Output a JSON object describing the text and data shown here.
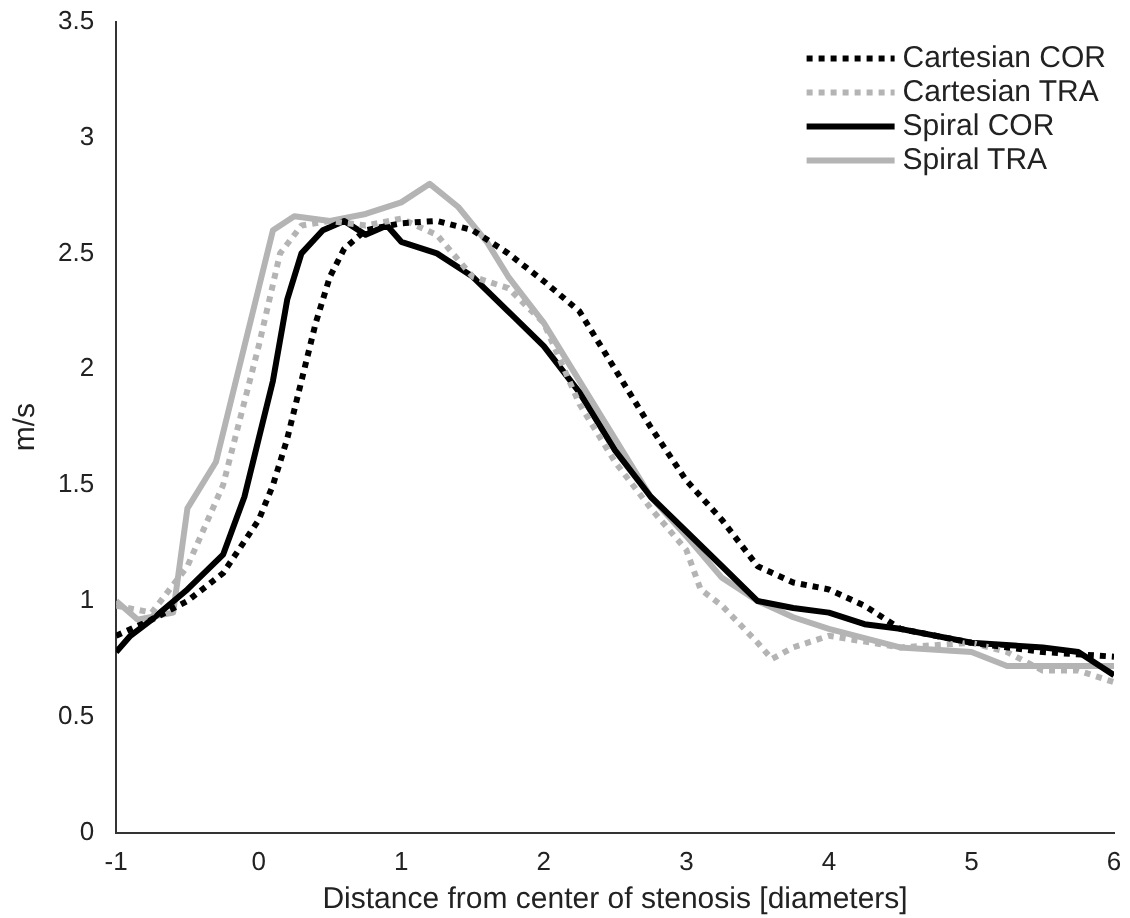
{
  "chart_data": {
    "type": "line",
    "xlabel": "Distance from center of stenosis [diameters]",
    "ylabel": "m/s",
    "xlim": [
      -1,
      6
    ],
    "xticks": [
      -1,
      0,
      1,
      2,
      3,
      4,
      5,
      6
    ],
    "ylim": [
      0,
      3.5
    ],
    "yticks": [
      0,
      0.5,
      1,
      1.5,
      2,
      2.5,
      3,
      3.5
    ],
    "grid": false,
    "legend": "top right",
    "marker": "none",
    "series": [
      {
        "name": "Cartesian COR",
        "color": "#000000",
        "line_style": "dotted",
        "x": [
          -1,
          -0.75,
          -0.5,
          -0.25,
          0,
          0.1,
          0.2,
          0.3,
          0.4,
          0.5,
          0.6,
          0.75,
          1,
          1.25,
          1.5,
          1.75,
          2,
          2.25,
          2.5,
          2.75,
          3,
          3.25,
          3.5,
          3.75,
          4,
          4.25,
          4.5,
          5,
          5.5,
          6
        ],
        "values": [
          0.85,
          0.92,
          1,
          1.12,
          1.35,
          1.5,
          1.7,
          1.95,
          2.2,
          2.4,
          2.52,
          2.6,
          2.63,
          2.64,
          2.6,
          2.5,
          2.38,
          2.25,
          2,
          1.75,
          1.52,
          1.35,
          1.15,
          1.08,
          1.05,
          0.98,
          0.88,
          0.82,
          0.78,
          0.76
        ]
      },
      {
        "name": "Cartesian TRA",
        "color": "#b4b4b4",
        "line_style": "dotted",
        "x": [
          -1,
          -0.75,
          -0.5,
          -0.25,
          0,
          0.15,
          0.3,
          0.5,
          0.75,
          1,
          1.25,
          1.5,
          1.75,
          2,
          2.25,
          2.5,
          2.75,
          3,
          3.1,
          3.25,
          3.5,
          3.6,
          3.75,
          4,
          4.5,
          5,
          5.25,
          5.5,
          5.75,
          6
        ],
        "values": [
          0.98,
          0.95,
          1.15,
          1.5,
          2.1,
          2.5,
          2.62,
          2.64,
          2.62,
          2.65,
          2.58,
          2.4,
          2.35,
          2.2,
          1.85,
          1.6,
          1.4,
          1.22,
          1.05,
          0.98,
          0.82,
          0.75,
          0.8,
          0.85,
          0.8,
          0.82,
          0.78,
          0.7,
          0.7,
          0.65
        ]
      },
      {
        "name": "Spiral COR",
        "color": "#000000",
        "line_style": "solid",
        "x": [
          -1,
          -0.9,
          -0.75,
          -0.5,
          -0.25,
          -0.1,
          0,
          0.1,
          0.2,
          0.3,
          0.45,
          0.6,
          0.75,
          0.9,
          1,
          1.25,
          1.5,
          1.75,
          2,
          2.25,
          2.5,
          2.75,
          3,
          3.25,
          3.5,
          3.75,
          4,
          4.25,
          4.5,
          5,
          5.5,
          5.75,
          6
        ],
        "values": [
          0.78,
          0.85,
          0.92,
          1.05,
          1.2,
          1.45,
          1.7,
          1.95,
          2.3,
          2.5,
          2.6,
          2.64,
          2.58,
          2.62,
          2.55,
          2.5,
          2.4,
          2.25,
          2.1,
          1.9,
          1.65,
          1.45,
          1.3,
          1.15,
          1,
          0.97,
          0.95,
          0.9,
          0.88,
          0.82,
          0.8,
          0.78,
          0.68
        ]
      },
      {
        "name": "Spiral TRA",
        "color": "#b4b4b4",
        "line_style": "solid",
        "x": [
          -1,
          -0.85,
          -0.6,
          -0.5,
          -0.3,
          -0.1,
          0,
          0.1,
          0.25,
          0.5,
          0.75,
          1,
          1.2,
          1.4,
          1.6,
          1.75,
          2,
          2.25,
          2.5,
          2.75,
          3,
          3.25,
          3.5,
          3.75,
          4,
          4.5,
          5,
          5.25,
          5.5,
          6
        ],
        "values": [
          1,
          0.92,
          0.95,
          1.4,
          1.6,
          2.1,
          2.35,
          2.6,
          2.66,
          2.64,
          2.67,
          2.72,
          2.8,
          2.7,
          2.55,
          2.4,
          2.2,
          1.95,
          1.7,
          1.45,
          1.28,
          1.1,
          1,
          0.93,
          0.88,
          0.8,
          0.78,
          0.72,
          0.72,
          0.72
        ]
      }
    ]
  }
}
